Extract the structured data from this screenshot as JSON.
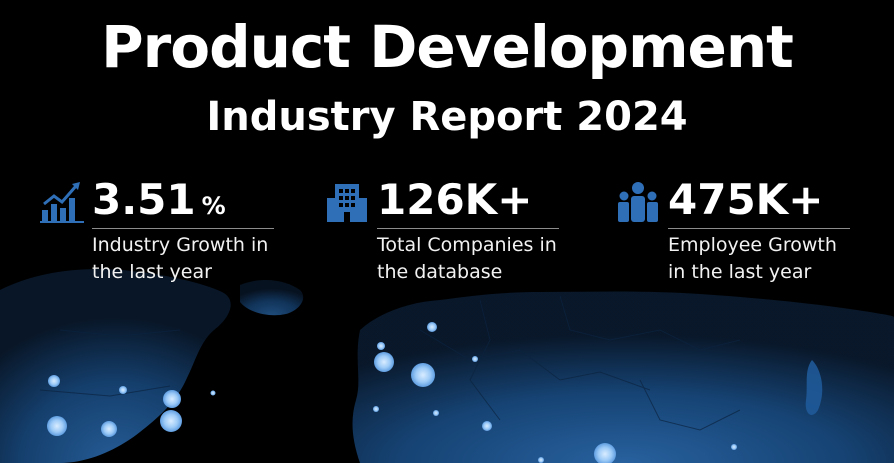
{
  "header": {
    "title": "Product Development",
    "subtitle": "Industry Report 2024"
  },
  "stats": [
    {
      "value": "3.51",
      "unit": "%",
      "description": "Industry Growth in the last year",
      "icon": "growth-chart-icon"
    },
    {
      "value": "126K+",
      "unit": "",
      "description": "Total Companies in the database",
      "icon": "building-icon"
    },
    {
      "value": "475K+",
      "unit": "",
      "description": "Employee Growth in the last year",
      "icon": "people-icon"
    }
  ],
  "colors": {
    "background": "#000000",
    "map_fill": "#1a4f86",
    "map_glow": "#2b6db3",
    "dot": "#a9d3ff",
    "icon": "#2f6fb8",
    "text": "#ffffff"
  }
}
